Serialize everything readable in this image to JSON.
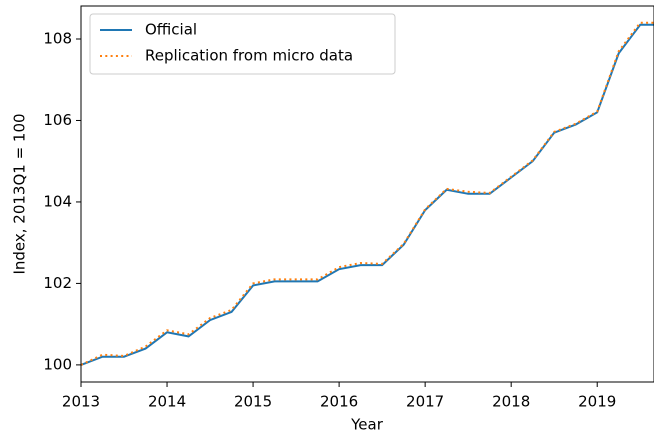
{
  "chart_data": {
    "type": "line",
    "x_label": "Year",
    "y_label": "Index, 2013Q1 = 100",
    "x": [
      2013,
      2013.25,
      2013.5,
      2013.75,
      2014,
      2014.25,
      2014.5,
      2014.75,
      2015,
      2015.25,
      2015.5,
      2015.75,
      2016,
      2016.25,
      2016.5,
      2016.75,
      2017,
      2017.25,
      2017.5,
      2017.75,
      2018,
      2018.25,
      2018.5,
      2018.75,
      2019,
      2019.25,
      2019.5,
      2019.75
    ],
    "series": [
      {
        "name": "Official",
        "color": "#1f77b4",
        "style": "solid",
        "values": [
          100.0,
          100.2,
          100.2,
          100.4,
          100.8,
          100.7,
          101.1,
          101.3,
          101.95,
          102.05,
          102.05,
          102.05,
          102.35,
          102.45,
          102.45,
          102.95,
          103.8,
          104.3,
          104.2,
          104.2,
          104.6,
          105.0,
          105.7,
          105.9,
          106.2,
          107.65,
          108.35,
          108.35
        ]
      },
      {
        "name": "Replication from micro data",
        "color": "#ff7f0e",
        "style": "dotted",
        "values": [
          100.0,
          100.25,
          100.22,
          100.45,
          100.85,
          100.75,
          101.15,
          101.35,
          102.0,
          102.1,
          102.1,
          102.1,
          102.4,
          102.5,
          102.48,
          102.97,
          103.82,
          104.32,
          104.25,
          104.22,
          104.62,
          105.02,
          105.72,
          105.92,
          106.22,
          107.7,
          108.4,
          108.4
        ]
      }
    ],
    "xlim": [
      2013,
      2019.66
    ],
    "xticks": [
      2013,
      2014,
      2015,
      2016,
      2017,
      2018,
      2019
    ],
    "ylim": [
      99.58,
      108.81
    ],
    "yticks": [
      100,
      102,
      104,
      106,
      108
    ],
    "legend": "upper left",
    "grid": false
  }
}
